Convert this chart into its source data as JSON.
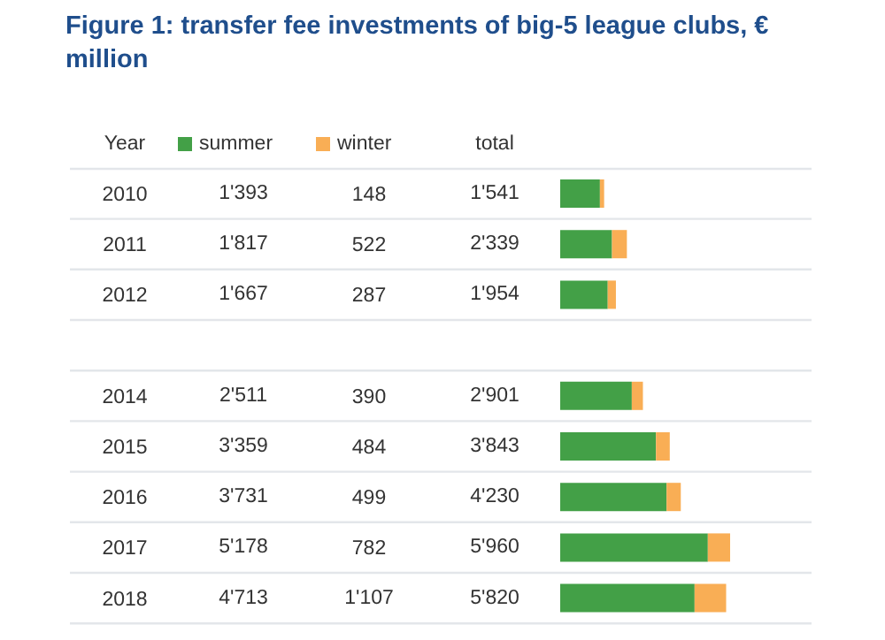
{
  "chart_data": {
    "type": "bar",
    "orientation": "horizontal",
    "stacked": true,
    "title": "Figure 1: transfer fee investments of big-5 league clubs, € million",
    "ylabel": "Year",
    "annotations": [
      "total"
    ],
    "categories": [
      "2010",
      "2011",
      "2012",
      null,
      "2014",
      "2015",
      "2016",
      "2017",
      "2018"
    ],
    "series": [
      {
        "name": "summer",
        "color": "#43a047",
        "values": [
          1393,
          1817,
          1667,
          null,
          2511,
          3359,
          3731,
          5178,
          4713
        ],
        "value_labels": [
          "1'393",
          "1'817",
          "1'667",
          null,
          "2'511",
          "3'359",
          "3'731",
          "5'178",
          "4'713"
        ]
      },
      {
        "name": "winter",
        "color": "#f9ae55",
        "values": [
          148,
          522,
          287,
          null,
          390,
          484,
          499,
          782,
          1107
        ],
        "value_labels": [
          "148",
          "522",
          "287",
          null,
          "390",
          "484",
          "499",
          "782",
          "1'107"
        ]
      }
    ],
    "totals": [
      "1'541",
      "2'339",
      "1'954",
      null,
      "2'901",
      "3'843",
      "4'230",
      "5'960",
      "5'820"
    ],
    "legend": "top",
    "grid": "y"
  }
}
